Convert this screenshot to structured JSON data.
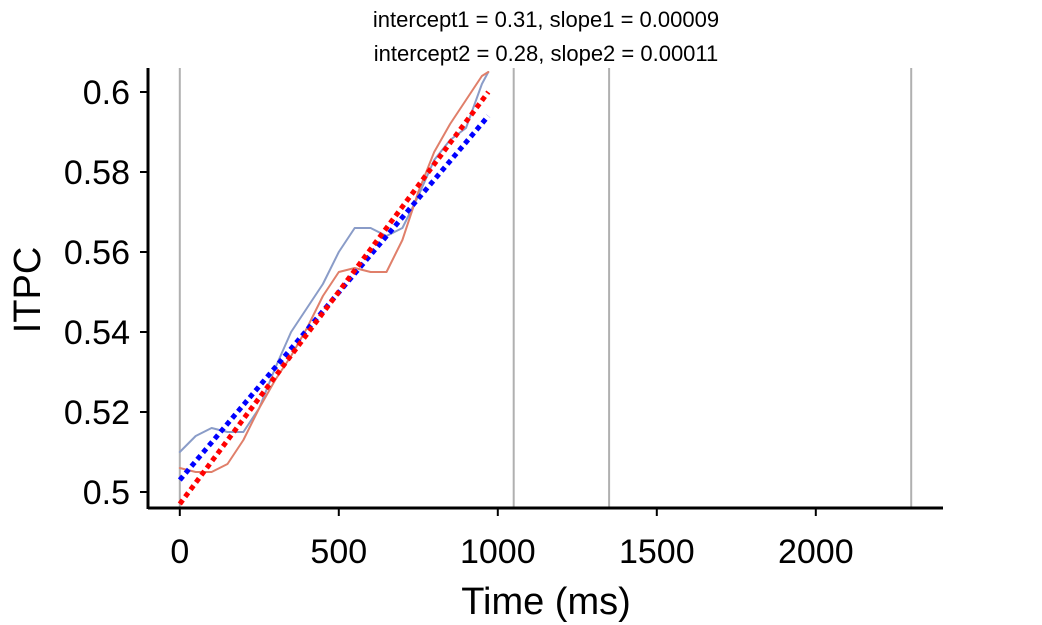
{
  "chart_data": {
    "type": "line",
    "title_lines": [
      "intercept1 = 0.31, slope1 = 0.00009",
      "intercept2 = 0.28, slope2 = 0.00011"
    ],
    "xlabel": "Time (ms)",
    "ylabel": "ITPC",
    "xlim": [
      -100,
      2400
    ],
    "ylim": [
      0.496,
      0.606
    ],
    "x_ticks": [
      0,
      500,
      1000,
      1500,
      2000
    ],
    "x_tick_labels": [
      "0",
      "500",
      "1000",
      "1500",
      "2000"
    ],
    "y_ticks": [
      0.5,
      0.52,
      0.54,
      0.56,
      0.58,
      0.6
    ],
    "y_tick_labels": [
      "0.5",
      "0.52",
      "0.54",
      "0.56",
      "0.58",
      "0.6"
    ],
    "vertical_lines": [
      0,
      1050,
      1350,
      2300
    ],
    "vertical_line_color": "#b0b0b0",
    "grid": false,
    "series": [
      {
        "style": "solid",
        "color": "#8a9cc8",
        "x": [
          0,
          50,
          100,
          150,
          200,
          250,
          300,
          350,
          400,
          450,
          500,
          550,
          600,
          650,
          700,
          750,
          800,
          850,
          900,
          950,
          970
        ],
        "y": [
          0.51,
          0.514,
          0.516,
          0.515,
          0.515,
          0.521,
          0.531,
          0.54,
          0.546,
          0.552,
          0.56,
          0.566,
          0.566,
          0.564,
          0.566,
          0.574,
          0.583,
          0.588,
          0.591,
          0.602,
          0.605
        ]
      },
      {
        "style": "solid",
        "color": "#e07f6a",
        "x": [
          0,
          50,
          100,
          150,
          200,
          250,
          300,
          350,
          400,
          450,
          500,
          550,
          600,
          650,
          700,
          750,
          800,
          850,
          900,
          950,
          970
        ],
        "y": [
          0.506,
          0.505,
          0.505,
          0.507,
          0.513,
          0.521,
          0.528,
          0.534,
          0.541,
          0.549,
          0.555,
          0.556,
          0.555,
          0.555,
          0.563,
          0.575,
          0.585,
          0.592,
          0.598,
          0.604,
          0.605
        ]
      },
      {
        "style": "dotted",
        "color": "#0000ff",
        "x": [
          0,
          970
        ],
        "y": [
          0.503,
          0.594
        ]
      },
      {
        "style": "dotted",
        "color": "#ff0000",
        "x": [
          0,
          970
        ],
        "y": [
          0.497,
          0.6
        ]
      }
    ]
  }
}
